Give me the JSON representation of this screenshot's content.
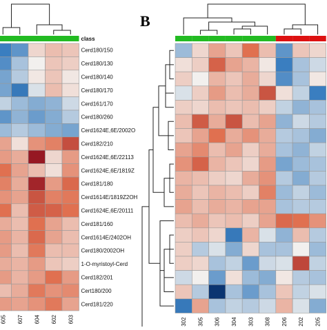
{
  "panel_b_label": "B",
  "colors": {
    "low": "#08306b",
    "mid_low": "#3a7ec0",
    "neutral": "#f2f0ee",
    "mid_high": "#e07050",
    "high": "#8b0a1c",
    "class_group_1": "#22bb22",
    "class_group_2": "#dd1111",
    "grid_line": "#9a9a9a",
    "dendrogram": "#222222"
  },
  "chart_data": [
    {
      "type": "heatmap",
      "panel": "A",
      "class_label": "class",
      "value_range": [
        -3,
        3
      ],
      "row_labels": [
        "Cerd180/150",
        "Cerd180/130",
        "Cerd180/140",
        "Cerd180/170",
        "Cerd161/170",
        "Cerd180/260",
        "Cerd1624E,6E/2002O",
        "Cerd182/210",
        "Cerd1624E,6E/22113",
        "Cerd1624E,6E/1819Z",
        "Cerd181/180",
        "Cerd1614E/1819Z2OH",
        "Cerd1624E,6E/20111",
        "Cerd181/160",
        "Cerd1614E/2402OH",
        "Cerd180/2002OH",
        "1-O-myristoyl-Cerd",
        "Cerd182/201",
        "Cert180/200",
        "Cerd181/220"
      ],
      "column_labels": [
        "605",
        "607",
        "604",
        "602",
        "603"
      ],
      "column_classes": [
        1,
        1,
        1,
        1,
        1
      ],
      "values": [
        [
          -1.5,
          -1.2,
          0.3,
          0.6,
          0.5
        ],
        [
          -1.3,
          -0.6,
          0.0,
          0.5,
          0.4
        ],
        [
          -1.0,
          -0.5,
          0.1,
          0.5,
          0.1
        ],
        [
          -1.0,
          -1.6,
          -0.2,
          0.6,
          0.2
        ],
        [
          -0.4,
          -0.7,
          -0.9,
          -0.8,
          -0.3
        ],
        [
          -1.2,
          -0.8,
          -1.1,
          -0.9,
          -0.5
        ],
        [
          -0.7,
          -0.5,
          -0.7,
          -0.9,
          -1.0
        ],
        [
          0.9,
          0.2,
          1.1,
          1.3,
          2.0
        ],
        [
          1.0,
          0.8,
          2.8,
          0.3,
          1.0
        ],
        [
          1.5,
          0.9,
          0.6,
          0.2,
          1.1
        ],
        [
          1.3,
          0.8,
          2.6,
          1.0,
          1.6
        ],
        [
          1.1,
          0.9,
          1.9,
          1.3,
          1.4
        ],
        [
          1.5,
          0.6,
          1.8,
          1.7,
          1.5
        ],
        [
          0.8,
          0.6,
          1.5,
          0.9,
          0.6
        ],
        [
          1.0,
          0.7,
          1.6,
          0.9,
          0.6
        ],
        [
          1.0,
          0.6,
          1.4,
          0.6,
          0.6
        ],
        [
          0.8,
          0.7,
          1.0,
          0.5,
          0.4
        ],
        [
          1.0,
          0.7,
          1.0,
          1.5,
          1.0
        ],
        [
          0.6,
          0.8,
          1.4,
          1.1,
          1.2
        ],
        [
          1.0,
          0.9,
          1.1,
          1.4,
          0.9
        ]
      ]
    },
    {
      "type": "heatmap",
      "panel": "B",
      "value_range": [
        -3,
        3
      ],
      "column_labels": [
        "302",
        "305",
        "306",
        "304",
        "303",
        "308",
        "206",
        "202",
        "205"
      ],
      "column_classes": [
        1,
        1,
        1,
        1,
        1,
        1,
        2,
        2,
        2
      ],
      "values": [
        [
          -0.7,
          0.3,
          0.9,
          0.5,
          1.5,
          0.6,
          -1.2,
          0.5,
          0.3
        ],
        [
          0.2,
          0.4,
          1.7,
          0.9,
          0.7,
          0.1,
          -1.5,
          -0.6,
          -0.3
        ],
        [
          0.4,
          0.0,
          0.7,
          0.5,
          0.8,
          0.3,
          -1.3,
          -0.6,
          0.1
        ],
        [
          -0.2,
          0.4,
          1.0,
          0.6,
          0.8,
          1.9,
          0.2,
          -0.4,
          -1.5
        ],
        [
          0.4,
          0.3,
          0.6,
          0.5,
          0.6,
          0.4,
          -0.4,
          -0.8,
          -0.6
        ],
        [
          0.6,
          1.8,
          0.8,
          1.9,
          0.6,
          0.9,
          -0.8,
          -0.3,
          -0.5
        ],
        [
          0.5,
          0.9,
          1.5,
          0.8,
          1.1,
          0.8,
          -0.5,
          -0.6,
          -0.9
        ],
        [
          0.9,
          1.2,
          0.6,
          0.9,
          0.4,
          0.8,
          -0.6,
          -0.8,
          -0.4
        ],
        [
          1.1,
          1.7,
          0.7,
          0.5,
          0.3,
          1.0,
          -1.0,
          -0.7,
          -0.6
        ],
        [
          0.7,
          0.6,
          0.4,
          0.3,
          0.8,
          1.1,
          -0.5,
          -0.9,
          -0.5
        ],
        [
          0.8,
          0.5,
          0.7,
          0.6,
          0.4,
          1.3,
          -0.7,
          -0.4,
          -0.7
        ],
        [
          0.9,
          0.6,
          0.8,
          0.7,
          0.9,
          0.9,
          -0.6,
          -0.5,
          -0.5
        ],
        [
          0.6,
          0.8,
          0.5,
          0.6,
          0.4,
          0.9,
          1.6,
          1.5,
          1.1
        ],
        [
          0.4,
          0.5,
          0.3,
          -1.6,
          0.7,
          -0.2,
          -0.8,
          0.6,
          -0.5
        ],
        [
          0.4,
          -0.5,
          -0.2,
          -0.9,
          0.3,
          -0.6,
          -0.6,
          0.0,
          -0.7
        ],
        [
          0.4,
          0.3,
          -0.6,
          -0.4,
          -1.1,
          -0.3,
          -0.2,
          2.1,
          -0.4
        ],
        [
          -0.3,
          0.0,
          -1.1,
          0.2,
          -0.7,
          -0.9,
          0.1,
          -0.5,
          -0.6
        ],
        [
          0.5,
          -0.5,
          -2.9,
          -0.6,
          -1.1,
          -0.6,
          0.5,
          -0.4,
          -0.2
        ],
        [
          -1.6,
          0.9,
          -0.6,
          -0.4,
          -0.5,
          -0.3,
          0.7,
          -0.2,
          -0.9
        ]
      ]
    }
  ]
}
